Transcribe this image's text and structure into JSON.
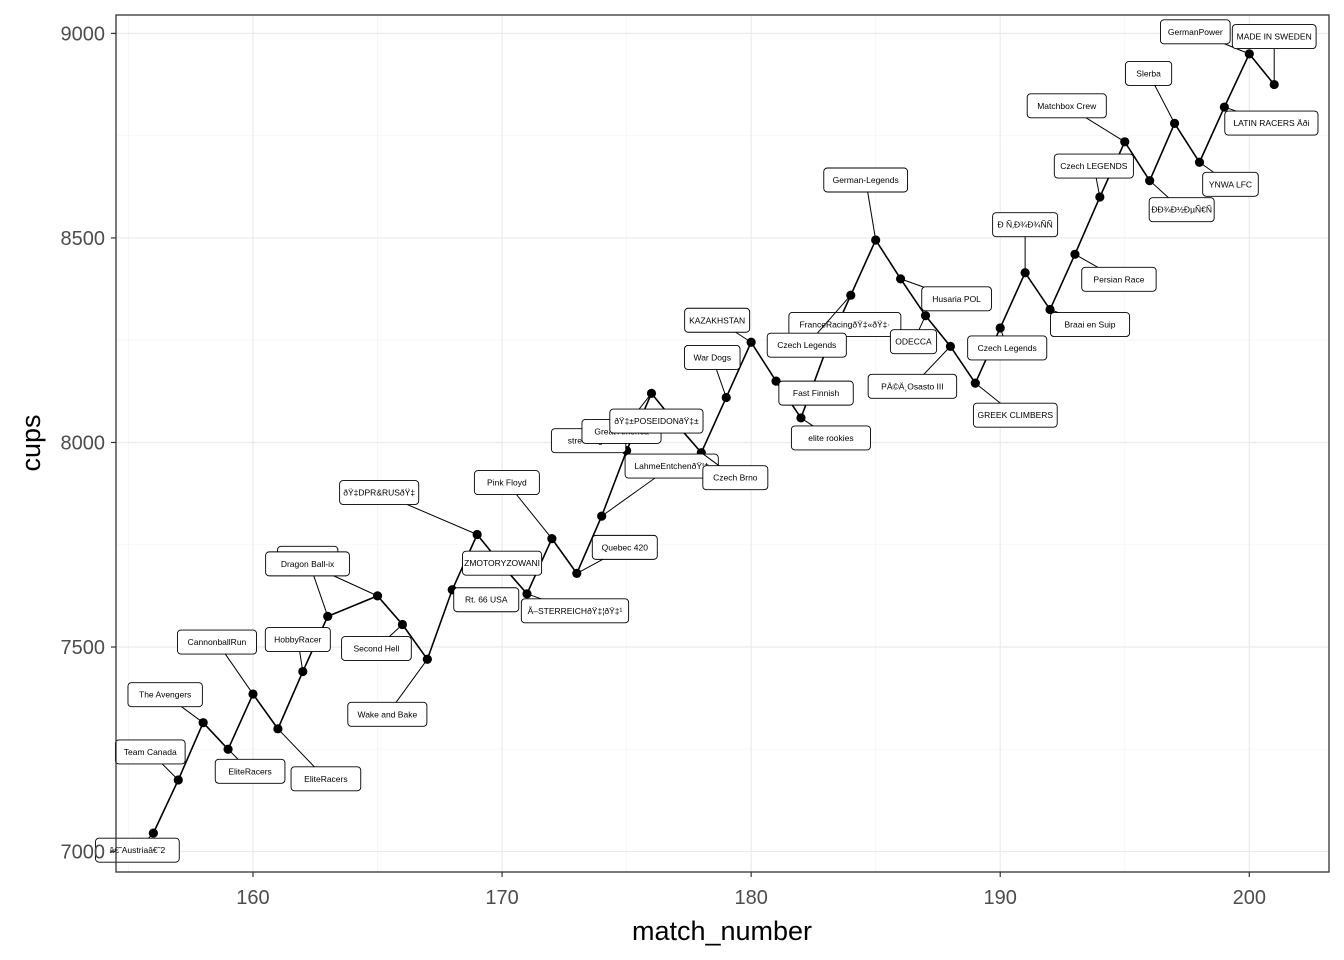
{
  "chart_data": {
    "type": "line",
    "xlabel": "match_number",
    "ylabel": "cups",
    "xlim": [
      154.5,
      203.2
    ],
    "ylim": [
      6950,
      9045
    ],
    "x_ticks": [
      160,
      170,
      180,
      190,
      200
    ],
    "y_ticks": [
      7000,
      7500,
      8000,
      8500,
      9000
    ],
    "grid": true,
    "points": [
      {
        "x": 156,
        "y": 7045,
        "label": "â€˜Austriaâ€˜2"
      },
      {
        "x": 157,
        "y": 7175,
        "label": "Team Canada"
      },
      {
        "x": 158,
        "y": 7315,
        "label": "The Avengers"
      },
      {
        "x": 159,
        "y": 7250,
        "label": "EliteRacers"
      },
      {
        "x": 160,
        "y": 7385,
        "label": "CannonballRun"
      },
      {
        "x": 161,
        "y": 7300,
        "label": "EliteRacers"
      },
      {
        "x": 162,
        "y": 7440,
        "label": "HobbyRacer"
      },
      {
        "x": 163,
        "y": 7575,
        "label": "Äœenity 2"
      },
      {
        "x": 165,
        "y": 7625,
        "label": "Dragon Ball-ix"
      },
      {
        "x": 166,
        "y": 7555,
        "label": "Second Hell"
      },
      {
        "x": 167,
        "y": 7470,
        "label": "Wake and Bake"
      },
      {
        "x": 168,
        "y": 7640,
        "label": "Rt. 66 USA"
      },
      {
        "x": 169,
        "y": 7775,
        "label": "ðŸ‡DPR&RUSðŸ‡"
      },
      {
        "x": 170,
        "y": 7700,
        "label": "ZMOTORYZOWANI"
      },
      {
        "x": 171,
        "y": 7630,
        "label": "Ã–STERREICHðŸ‡¦ðŸ‡¹"
      },
      {
        "x": 172,
        "y": 7765,
        "label": "Pink Floyd"
      },
      {
        "x": 173,
        "y": 7680,
        "label": "Quebec 420"
      },
      {
        "x": 174,
        "y": 7820,
        "label": "LahmeEntchenðŸ¦†"
      },
      {
        "x": 175,
        "y": 7980,
        "label": "street legal"
      },
      {
        "x": 176,
        "y": 8120,
        "label": "Great America"
      },
      {
        "x": 177,
        "y": 8045,
        "label": "ðŸ‡±POSEIDONðŸ‡±"
      },
      {
        "x": 178,
        "y": 7975,
        "label": "Czech Brno"
      },
      {
        "x": 179,
        "y": 8110,
        "label": "War Dogs"
      },
      {
        "x": 180,
        "y": 8245,
        "label": "KAZAKHSTAN"
      },
      {
        "x": 181,
        "y": 8150,
        "label": "Fast Finnish"
      },
      {
        "x": 182,
        "y": 8060,
        "label": "elite rookies"
      },
      {
        "x": 183,
        "y": 8225,
        "label": "FranceRacingðŸ‡«ðŸ‡·"
      },
      {
        "x": 184,
        "y": 8360,
        "label": "Czech Legends"
      },
      {
        "x": 185,
        "y": 8495,
        "label": "German-Legends"
      },
      {
        "x": 186,
        "y": 8400,
        "label": "Husaria POL"
      },
      {
        "x": 187,
        "y": 8310,
        "label": "ODECCA"
      },
      {
        "x": 188,
        "y": 8235,
        "label": "PÄ©Ä¸Osasto III"
      },
      {
        "x": 189,
        "y": 8145,
        "label": "GREEK CLIMBERS"
      },
      {
        "x": 190,
        "y": 8280,
        "label": "Czech Legends"
      },
      {
        "x": 191,
        "y": 8415,
        "label": "Ð Ñ‚Ð¾Ð¾ÑÑ"
      },
      {
        "x": 192,
        "y": 8325,
        "label": "Braai en Suip"
      },
      {
        "x": 193,
        "y": 8460,
        "label": "Persian Race"
      },
      {
        "x": 194,
        "y": 8600,
        "label": "Czech LEGENDS"
      },
      {
        "x": 195,
        "y": 8735,
        "label": "Matchbox Crew"
      },
      {
        "x": 196,
        "y": 8640,
        "label": "ÐÐ¾Ð½ÐµÑ€Ñ"
      },
      {
        "x": 197,
        "y": 8780,
        "label": "Slerba"
      },
      {
        "x": 198,
        "y": 8685,
        "label": "YNWA LFC"
      },
      {
        "x": 199,
        "y": 8820,
        "label": "LATIN RACERS Äði"
      },
      {
        "x": 200,
        "y": 8950,
        "label": "GermanPower"
      },
      {
        "x": 201,
        "y": 8875,
        "label": "MADE IN SWEDEN"
      }
    ]
  }
}
